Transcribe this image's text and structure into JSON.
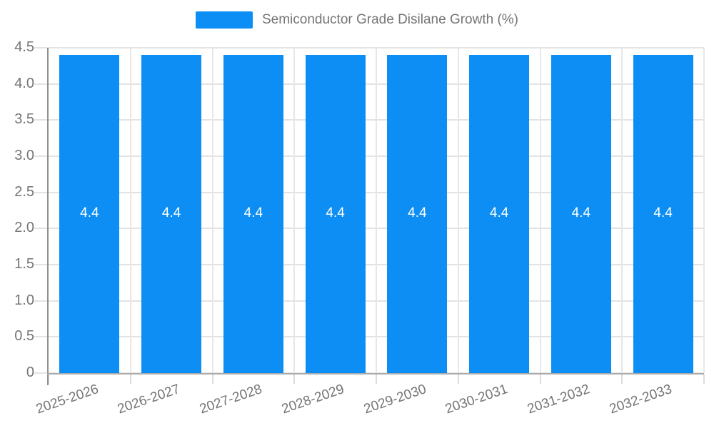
{
  "legend": {
    "label": "Semiconductor Grade Disilane Growth (%)"
  },
  "chart_data": {
    "type": "bar",
    "title": "Semiconductor Grade Disilane Growth (%)",
    "categories": [
      "2025-2026",
      "2026-2027",
      "2027-2028",
      "2028-2029",
      "2029-2030",
      "2030-2031",
      "2031-2032",
      "2032-2033"
    ],
    "values": [
      4.4,
      4.4,
      4.4,
      4.4,
      4.4,
      4.4,
      4.4,
      4.4
    ],
    "bar_labels": [
      "4.4",
      "4.4",
      "4.4",
      "4.4",
      "4.4",
      "4.4",
      "4.4",
      "4.4"
    ],
    "xlabel": "",
    "ylabel": "",
    "ylim": [
      0,
      4.5
    ],
    "ytick_step": 0.5,
    "yticks": [
      "0",
      "0.5",
      "1.0",
      "1.5",
      "2.0",
      "2.5",
      "3.0",
      "3.5",
      "4.0",
      "4.5"
    ],
    "grid": true,
    "legend_position": "top",
    "colors": {
      "bar": "#0d8ef4",
      "bar_label": "#ffffff",
      "axis_text": "#757575",
      "grid_line": "#e3e3e3",
      "y_axis_line": "#8f8f8f",
      "x_axis_line": "#ababab"
    }
  }
}
